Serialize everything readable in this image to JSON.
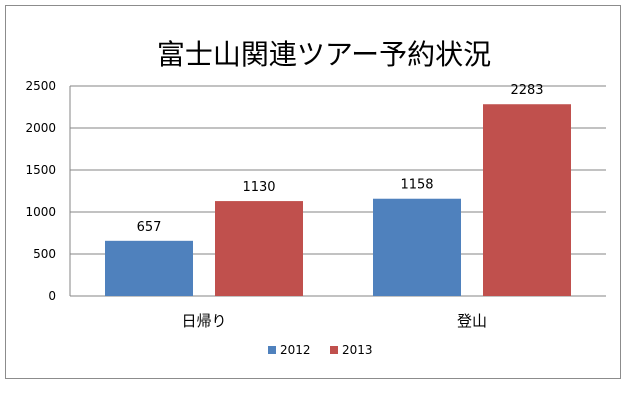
{
  "chart_data": {
    "type": "bar",
    "title": "富士山関連ツアー予約状況",
    "categories": [
      "日帰り",
      "登山"
    ],
    "series": [
      {
        "name": "2012",
        "values": [
          657,
          1158
        ],
        "color": "#4f81bd"
      },
      {
        "name": "2013",
        "values": [
          1130,
          2283
        ],
        "color": "#c0504d"
      }
    ],
    "ylim": [
      0,
      2500
    ],
    "yticks": [
      "0",
      "500",
      "1000",
      "1500",
      "2000",
      "2500"
    ],
    "grid": true,
    "legend": "bottom",
    "data_labels": true
  }
}
